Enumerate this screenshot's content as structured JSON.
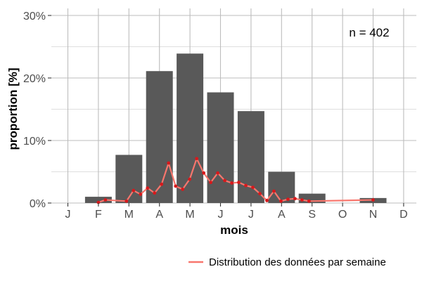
{
  "chart_data": {
    "type": "bar",
    "categories": [
      "J",
      "F",
      "M",
      "A",
      "M",
      "J",
      "J",
      "A",
      "S",
      "O",
      "N",
      "D"
    ],
    "values": [
      0,
      1.0,
      7.7,
      21.1,
      23.9,
      17.7,
      14.7,
      5.0,
      1.5,
      0,
      0.8,
      0
    ],
    "bar_color": "#595959",
    "xlabel": "mois",
    "ylabel": "proportion [%]",
    "ylim": [
      0,
      30
    ],
    "yticks": [
      0,
      10,
      20,
      30
    ],
    "ytick_labels": [
      "0%",
      "10%",
      "20%",
      "30%"
    ],
    "grid": true,
    "annotation": "n = 402",
    "series": [
      {
        "name": "Distribution des données par semaine",
        "type": "line",
        "color": "#f8766d",
        "x": [
          2.0,
          2.23,
          2.92,
          3.15,
          3.38,
          3.61,
          3.84,
          4.07,
          4.3,
          4.53,
          4.76,
          4.99,
          5.22,
          5.45,
          5.68,
          5.91,
          6.14,
          6.37,
          6.6,
          6.83,
          7.06,
          7.29,
          7.52,
          7.75,
          7.98,
          8.21,
          8.44,
          8.67,
          8.9,
          11.0
        ],
        "y": [
          0.1,
          0.5,
          0.3,
          2.0,
          1.4,
          2.4,
          1.6,
          3.0,
          6.4,
          2.7,
          2.2,
          3.8,
          7.1,
          4.8,
          3.3,
          4.8,
          3.6,
          3.2,
          3.3,
          2.8,
          2.5,
          1.5,
          0.4,
          1.9,
          0.3,
          0.6,
          0.7,
          0.5,
          0.3,
          0.5
        ]
      }
    ],
    "legend_position": "bottom-right"
  }
}
